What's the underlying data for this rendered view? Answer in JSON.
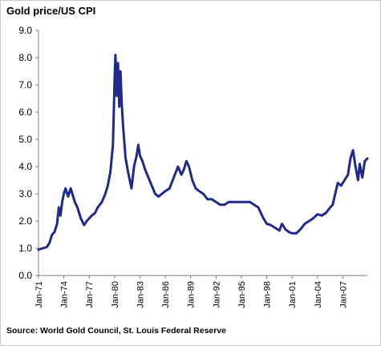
{
  "chart_data": {
    "type": "line",
    "title": "Gold price/US CPI",
    "source": "Source: World Gold Council, St. Louis Federal Reserve",
    "xlabel": "",
    "ylabel": "",
    "ylim": [
      0,
      9
    ],
    "yticks": [
      "0.0",
      "1.0",
      "2.0",
      "3.0",
      "4.0",
      "5.0",
      "6.0",
      "7.0",
      "8.0",
      "9.0"
    ],
    "xticks": [
      "Jan-71",
      "Jan-74",
      "Jan-77",
      "Jan-80",
      "Jan-83",
      "Jan-86",
      "Jan-89",
      "Jan-92",
      "Jan-95",
      "Jan-98",
      "Jan-01",
      "Jan-04",
      "Jan-07"
    ],
    "xlim": [
      1971.0,
      2009.9
    ],
    "grid": false,
    "line_color": "#1f2a8a",
    "series": [
      {
        "x": [
          1971.0,
          1971.5,
          1972.0,
          1972.3,
          1972.6,
          1972.9,
          1973.2,
          1973.4,
          1973.6,
          1973.8,
          1974.0,
          1974.2,
          1974.5,
          1974.8,
          1975.0,
          1975.3,
          1975.6,
          1976.0,
          1976.4,
          1976.7,
          1977.0,
          1977.3,
          1977.7,
          1978.0,
          1978.5,
          1978.9,
          1979.2,
          1979.5,
          1979.8,
          1980.0,
          1980.1,
          1980.25,
          1980.4,
          1980.55,
          1980.7,
          1980.85,
          1981.0,
          1981.3,
          1981.6,
          1982.0,
          1982.3,
          1982.6,
          1982.8,
          1983.0,
          1983.3,
          1983.6,
          1984.0,
          1984.4,
          1984.8,
          1985.2,
          1985.6,
          1986.0,
          1986.5,
          1987.0,
          1987.5,
          1987.9,
          1988.2,
          1988.5,
          1988.8,
          1989.2,
          1989.6,
          1990.0,
          1990.5,
          1991.0,
          1991.5,
          1992.0,
          1992.5,
          1993.0,
          1993.5,
          1994.0,
          1994.5,
          1995.0,
          1995.5,
          1996.0,
          1996.5,
          1997.0,
          1997.3,
          1997.6,
          1998.0,
          1998.5,
          1999.0,
          1999.5,
          1999.8,
          2000.2,
          2000.6,
          2001.0,
          2001.5,
          2002.0,
          2002.5,
          2003.0,
          2003.5,
          2004.0,
          2004.5,
          2005.0,
          2005.5,
          2005.8,
          2006.1,
          2006.4,
          2006.8,
          2007.2,
          2007.6,
          2007.9,
          2008.2,
          2008.5,
          2008.8,
          2009.0,
          2009.3,
          2009.6,
          2009.9
        ],
        "y": [
          0.95,
          1.0,
          1.05,
          1.2,
          1.5,
          1.6,
          1.9,
          2.5,
          2.2,
          2.7,
          3.0,
          3.2,
          2.9,
          3.2,
          3.0,
          2.7,
          2.5,
          2.1,
          1.85,
          2.0,
          2.1,
          2.2,
          2.3,
          2.5,
          2.7,
          3.0,
          3.3,
          3.8,
          4.8,
          7.2,
          8.1,
          6.6,
          7.8,
          6.2,
          7.5,
          6.3,
          5.5,
          4.3,
          3.8,
          3.2,
          4.0,
          4.4,
          4.8,
          4.4,
          4.2,
          3.9,
          3.6,
          3.3,
          3.0,
          2.9,
          3.0,
          3.1,
          3.2,
          3.6,
          4.0,
          3.7,
          3.9,
          4.2,
          4.0,
          3.5,
          3.2,
          3.1,
          3.0,
          2.8,
          2.8,
          2.7,
          2.6,
          2.6,
          2.7,
          2.7,
          2.7,
          2.7,
          2.7,
          2.7,
          2.6,
          2.5,
          2.3,
          2.1,
          1.9,
          1.85,
          1.75,
          1.65,
          1.9,
          1.7,
          1.6,
          1.55,
          1.55,
          1.7,
          1.9,
          2.0,
          2.1,
          2.25,
          2.2,
          2.3,
          2.5,
          2.6,
          3.0,
          3.4,
          3.3,
          3.5,
          3.7,
          4.3,
          4.6,
          4.0,
          3.5,
          4.1,
          3.6,
          4.2,
          4.3
        ]
      }
    ]
  }
}
